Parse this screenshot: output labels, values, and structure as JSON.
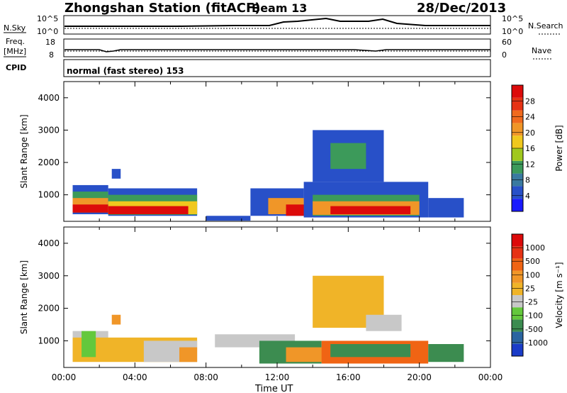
{
  "header": {
    "station": "Zhongshan Station (fitACF)",
    "beam": "Beam 13",
    "date": "28/Dec/2013"
  },
  "panels_top": {
    "nsky_label": "N.Sky",
    "nsky_ticks": [
      "10^5",
      "10^0"
    ],
    "nsearch_label": "N.Search",
    "nsearch_ticks": [
      "10^5",
      "10^0"
    ],
    "freq_label": "Freq.",
    "freq_unit": "[MHz]",
    "freq_ticks": [
      "18",
      "8"
    ],
    "nave_label": "Nave",
    "nave_ticks": [
      "60",
      "0"
    ],
    "cpid_label": "CPID",
    "cpid_text": "normal (fast stereo) 153"
  },
  "chart_data": [
    {
      "type": "heatmap",
      "name": "power",
      "ylabel": "Slant Range [km]",
      "xlabel": "Time UT",
      "ylim": [
        180,
        4500
      ],
      "yticks": [
        "1000",
        "2000",
        "3000",
        "4000"
      ],
      "colorbar_label": "Power [dB]",
      "colorbar_ticks": [
        "4",
        "8",
        "12",
        "16",
        "20",
        "24",
        "28"
      ],
      "colorbar_colors": [
        "#1a1aff",
        "#2850c8",
        "#3a7aa0",
        "#3c9a5a",
        "#a0c81e",
        "#f0c81e",
        "#f09628",
        "#f06a1e",
        "#e63214",
        "#dc0a0a"
      ],
      "cells": [
        {
          "t0": 0.5,
          "t1": 2.5,
          "r0": 400,
          "r1": 1300,
          "c": "#2850c8"
        },
        {
          "t0": 0.5,
          "t1": 2.5,
          "r0": 450,
          "r1": 1100,
          "c": "#3c9a5a"
        },
        {
          "t0": 0.5,
          "t1": 2.5,
          "r0": 500,
          "r1": 900,
          "c": "#f09628"
        },
        {
          "t0": 0.5,
          "t1": 2.5,
          "r0": 450,
          "r1": 700,
          "c": "#dc0a0a"
        },
        {
          "t0": 2.5,
          "t1": 7.5,
          "r0": 350,
          "r1": 1200,
          "c": "#2850c8"
        },
        {
          "t0": 2.5,
          "t1": 7.5,
          "r0": 380,
          "r1": 1000,
          "c": "#3c9a5a"
        },
        {
          "t0": 2.5,
          "t1": 7.5,
          "r0": 400,
          "r1": 800,
          "c": "#f0c81e"
        },
        {
          "t0": 2.5,
          "t1": 7.0,
          "r0": 400,
          "r1": 650,
          "c": "#dc0a0a"
        },
        {
          "t0": 2.7,
          "t1": 3.2,
          "r0": 1500,
          "r1": 1800,
          "c": "#2850c8"
        },
        {
          "t0": 8.0,
          "t1": 10.5,
          "r0": 200,
          "r1": 350,
          "c": "#2850c8"
        },
        {
          "t0": 10.5,
          "t1": 13.5,
          "r0": 350,
          "r1": 1200,
          "c": "#2850c8"
        },
        {
          "t0": 11.5,
          "t1": 13.5,
          "r0": 400,
          "r1": 900,
          "c": "#f09628"
        },
        {
          "t0": 12.5,
          "t1": 15,
          "r0": 350,
          "r1": 700,
          "c": "#dc0a0a"
        },
        {
          "t0": 13.5,
          "t1": 20.5,
          "r0": 300,
          "r1": 1400,
          "c": "#2850c8"
        },
        {
          "t0": 14,
          "t1": 20,
          "r0": 350,
          "r1": 1000,
          "c": "#3c9a5a"
        },
        {
          "t0": 14,
          "t1": 20,
          "r0": 380,
          "r1": 800,
          "c": "#f09628"
        },
        {
          "t0": 15,
          "t1": 19.5,
          "r0": 400,
          "r1": 650,
          "c": "#dc0a0a"
        },
        {
          "t0": 14,
          "t1": 18,
          "r0": 1400,
          "r1": 3000,
          "c": "#2850c8"
        },
        {
          "t0": 15,
          "t1": 17,
          "r0": 1800,
          "r1": 2600,
          "c": "#3c9a5a"
        },
        {
          "t0": 20.5,
          "t1": 22.5,
          "r0": 300,
          "r1": 900,
          "c": "#2850c8"
        }
      ]
    },
    {
      "type": "heatmap",
      "name": "velocity",
      "ylabel": "Slant Range [km]",
      "xlabel": "Time UT",
      "ylim": [
        180,
        4500
      ],
      "yticks": [
        "1000",
        "2000",
        "3000",
        "4000"
      ],
      "xticks": [
        "00:00",
        "04:00",
        "08:00",
        "12:00",
        "16:00",
        "20:00",
        "00:00"
      ],
      "colorbar_label": "Velocity [m s⁻¹]",
      "colorbar_ticks": [
        "1000",
        "500",
        "100",
        "25",
        "-25",
        "-100",
        "-500",
        "-1000"
      ],
      "colorbar_colors": [
        "#1a3cc8",
        "#2a64a0",
        "#3c8c50",
        "#64c83c",
        "#c8c8c8",
        "#f0b428",
        "#f09628",
        "#f06414",
        "#e63214",
        "#dc0a0a"
      ],
      "cells": [
        {
          "t0": 0.5,
          "t1": 2.5,
          "r0": 400,
          "r1": 1300,
          "c": "#c8c8c8"
        },
        {
          "t0": 0.5,
          "t1": 7.5,
          "r0": 350,
          "r1": 1100,
          "c": "#f0b428"
        },
        {
          "t0": 1.0,
          "t1": 1.8,
          "r0": 500,
          "r1": 1300,
          "c": "#64c83c"
        },
        {
          "t0": 4.5,
          "t1": 7.5,
          "r0": 350,
          "r1": 1000,
          "c": "#c8c8c8"
        },
        {
          "t0": 6.5,
          "t1": 7.5,
          "r0": 350,
          "r1": 800,
          "c": "#f09628"
        },
        {
          "t0": 2.7,
          "t1": 3.2,
          "r0": 1500,
          "r1": 1800,
          "c": "#f09628"
        },
        {
          "t0": 8.5,
          "t1": 13,
          "r0": 800,
          "r1": 1200,
          "c": "#c8c8c8"
        },
        {
          "t0": 11,
          "t1": 14.5,
          "r0": 300,
          "r1": 1000,
          "c": "#3c8c50"
        },
        {
          "t0": 12.5,
          "t1": 15,
          "r0": 350,
          "r1": 800,
          "c": "#f09628"
        },
        {
          "t0": 14.5,
          "t1": 20.5,
          "r0": 300,
          "r1": 1000,
          "c": "#f06414"
        },
        {
          "t0": 15,
          "t1": 19.5,
          "r0": 500,
          "r1": 900,
          "c": "#3c8c50"
        },
        {
          "t0": 14,
          "t1": 18,
          "r0": 1400,
          "r1": 3000,
          "c": "#f0b428"
        },
        {
          "t0": 17,
          "t1": 19,
          "r0": 1300,
          "r1": 1800,
          "c": "#c8c8c8"
        },
        {
          "t0": 20.5,
          "t1": 22.5,
          "r0": 350,
          "r1": 900,
          "c": "#3c8c50"
        }
      ]
    }
  ]
}
